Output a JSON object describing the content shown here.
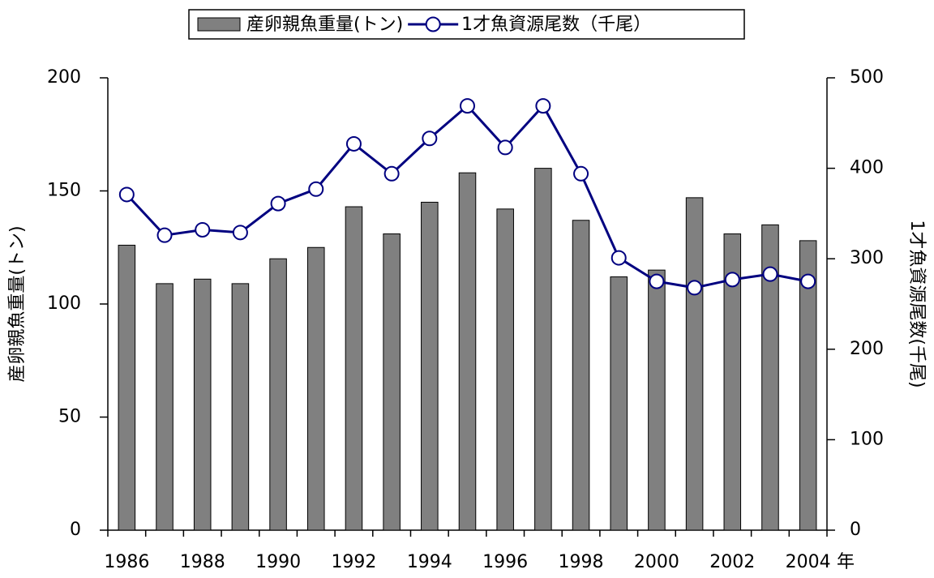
{
  "chart_data": {
    "type": "bar",
    "categories": [
      "1986",
      null,
      "1988",
      null,
      "1990",
      null,
      "1992",
      null,
      "1994",
      null,
      "1996",
      null,
      "1998",
      null,
      "2000",
      null,
      "2002",
      null,
      "2004"
    ],
    "xlabel": "年",
    "ylabel": "産卵親魚重量(トン)",
    "y2label": "1才魚資源尾数(千尾)",
    "ylim": [
      0,
      200
    ],
    "yticks": [
      0,
      50,
      100,
      150,
      200
    ],
    "y2lim": [
      0,
      500
    ],
    "y2ticks": [
      0,
      100,
      200,
      300,
      400,
      500
    ],
    "legend": "top",
    "series": [
      {
        "name": "産卵親魚重量(トン)",
        "type": "bar",
        "color": "#808080",
        "values": [
          126,
          109,
          111,
          109,
          120,
          125,
          143,
          131,
          145,
          158,
          142,
          160,
          137,
          112,
          115,
          147,
          131,
          135,
          128
        ]
      },
      {
        "name": "1才魚資源尾数（千尾）",
        "type": "line",
        "axis": "y2",
        "color": "#000080",
        "values": [
          371,
          326,
          332,
          329,
          361,
          377,
          427,
          394,
          433,
          469,
          423,
          469,
          394,
          301,
          275,
          268,
          277,
          283,
          275
        ]
      }
    ]
  }
}
